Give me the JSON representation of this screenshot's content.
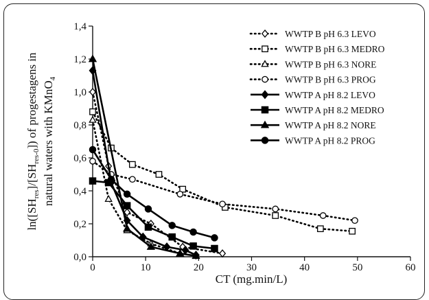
{
  "chart_data": {
    "type": "line",
    "xlabel": "CT (mg.min/L)",
    "ylabel_parts": {
      "p1": "ln([SH",
      "s1": "res",
      "p2": "]/[SH",
      "s2": "res-0",
      "p3": "]) of progestagens in",
      "line2a": "natural waters with KMnO",
      "line2sub": "4"
    },
    "xlim": [
      0,
      60
    ],
    "ylim": [
      0,
      1.4
    ],
    "x_ticks": [
      "0",
      "10",
      "20",
      "30",
      "40",
      "50",
      "60"
    ],
    "y_ticks": [
      "0,0",
      "0,2",
      "0,4",
      "0,6",
      "0,8",
      "1,0",
      "1,2",
      "1,4"
    ],
    "grid": false,
    "legend_position": "top-right",
    "series": [
      {
        "name": "WWTP B pH 6.3 LEVO",
        "marker": "diamond",
        "fill": "open",
        "dash": "dotted",
        "x": [
          0,
          3,
          6.5,
          11,
          17,
          24.5
        ],
        "y": [
          1.0,
          0.55,
          0.27,
          0.2,
          0.06,
          0.02
        ]
      },
      {
        "name": "WWTP B pH 6.3 MEDRO",
        "marker": "square",
        "fill": "open",
        "dash": "dotted",
        "x": [
          0,
          3.5,
          7.5,
          12.5,
          17,
          25,
          34.5,
          43,
          49
        ],
        "y": [
          0.88,
          0.66,
          0.56,
          0.5,
          0.41,
          0.3,
          0.25,
          0.17,
          0.155
        ]
      },
      {
        "name": "WWTP B pH 6.3 NORE",
        "marker": "triangle",
        "fill": "open",
        "dash": "dotted",
        "x": [
          0,
          3,
          6.5,
          11,
          16.5
        ],
        "y": [
          0.83,
          0.35,
          0.16,
          0.08,
          0.02
        ]
      },
      {
        "name": "WWTP B pH 6.3 PROG",
        "marker": "circle",
        "fill": "open",
        "dash": "dotted",
        "x": [
          0,
          3.5,
          7.5,
          16.5,
          24.5,
          34.5,
          43.5,
          49.5
        ],
        "y": [
          0.58,
          0.5,
          0.47,
          0.38,
          0.32,
          0.29,
          0.25,
          0.22
        ]
      },
      {
        "name": "WWTP A pH 8.2 LEVO",
        "marker": "diamond",
        "fill": "solid",
        "dash": "solid",
        "x": [
          0,
          3.5,
          6.5,
          9.5,
          14,
          17.5,
          19.5
        ],
        "y": [
          1.13,
          0.45,
          0.22,
          0.12,
          0.06,
          0.04,
          0.01
        ]
      },
      {
        "name": "WWTP A pH 8.2 MEDRO",
        "marker": "square",
        "fill": "solid",
        "dash": "solid",
        "x": [
          0,
          3,
          6.5,
          10.5,
          15,
          19,
          23
        ],
        "y": [
          0.46,
          0.45,
          0.31,
          0.18,
          0.12,
          0.065,
          0.05
        ]
      },
      {
        "name": "WWTP A pH 8.2 NORE",
        "marker": "triangle",
        "fill": "solid",
        "dash": "solid",
        "x": [
          0,
          6.5,
          11,
          16.5,
          19.5
        ],
        "y": [
          1.2,
          0.17,
          0.06,
          0.02,
          0.005
        ]
      },
      {
        "name": "WWTP A pH 8.2 PROG",
        "marker": "circle",
        "fill": "solid",
        "dash": "solid",
        "x": [
          0,
          3.5,
          6.5,
          10.5,
          15,
          19,
          23
        ],
        "y": [
          0.65,
          0.47,
          0.38,
          0.29,
          0.19,
          0.15,
          0.115
        ]
      }
    ]
  }
}
